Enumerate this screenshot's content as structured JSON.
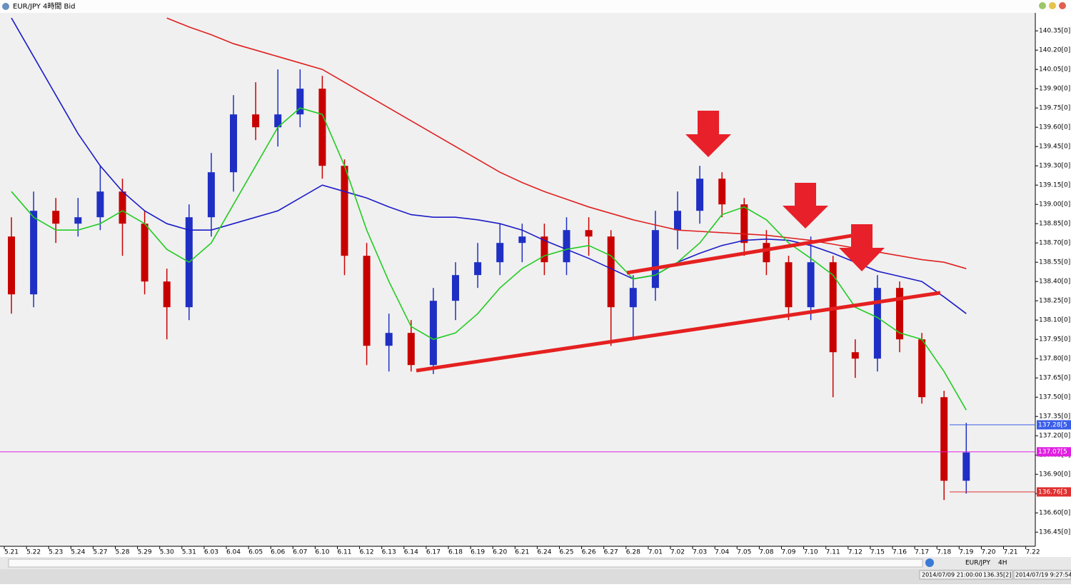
{
  "window": {
    "title": "EUR/JPY 4時間 Bid"
  },
  "chart_data": {
    "type": "candlestick",
    "categories": [
      "5.21",
      "5.22",
      "5.23",
      "5.24",
      "5.27",
      "5.28",
      "5.29",
      "5.30",
      "5.31",
      "6.03",
      "6.04",
      "6.05",
      "6.06",
      "6.07",
      "6.10",
      "6.11",
      "6.12",
      "6.13",
      "6.14",
      "6.17",
      "6.18",
      "6.19",
      "6.20",
      "6.21",
      "6.24",
      "6.25",
      "6.26",
      "6.27",
      "6.28",
      "7.01",
      "7.02",
      "7.03",
      "7.04",
      "7.05",
      "7.08",
      "7.09",
      "7.10",
      "7.11",
      "7.12",
      "7.15",
      "7.16",
      "7.17",
      "7.18",
      "7.19",
      "7.20",
      "7.21",
      "7.22"
    ],
    "open": [
      138.75,
      138.3,
      138.95,
      138.85,
      138.9,
      139.1,
      138.85,
      138.4,
      138.2,
      138.9,
      139.25,
      139.7,
      139.6,
      139.7,
      139.9,
      139.3,
      138.6,
      137.9,
      138.0,
      137.75,
      138.25,
      138.45,
      138.55,
      138.7,
      138.75,
      138.55,
      138.8,
      138.75,
      138.2,
      138.35,
      138.8,
      138.95,
      139.2,
      139.0,
      138.7,
      138.55,
      138.2,
      138.55,
      137.85,
      137.8,
      138.35,
      137.95,
      137.5,
      136.85,
      null,
      null,
      null
    ],
    "high": [
      138.9,
      139.1,
      139.05,
      139.05,
      139.3,
      139.2,
      138.95,
      138.5,
      139.0,
      139.4,
      139.85,
      139.95,
      140.05,
      140.05,
      140.0,
      139.35,
      138.7,
      138.15,
      138.1,
      138.35,
      138.55,
      138.7,
      138.85,
      138.85,
      138.85,
      138.9,
      138.9,
      138.8,
      138.45,
      138.95,
      139.1,
      139.3,
      139.25,
      139.05,
      138.8,
      138.6,
      138.75,
      138.6,
      137.95,
      138.45,
      138.4,
      138.0,
      137.55,
      137.3,
      null,
      null,
      null
    ],
    "low": [
      138.15,
      138.2,
      138.7,
      138.75,
      138.8,
      138.6,
      138.3,
      137.95,
      138.1,
      138.75,
      139.1,
      139.5,
      139.45,
      139.6,
      139.2,
      138.45,
      137.75,
      137.7,
      137.7,
      137.68,
      138.1,
      138.35,
      138.45,
      138.55,
      138.45,
      138.45,
      138.6,
      137.9,
      137.95,
      138.25,
      138.65,
      138.85,
      138.9,
      138.6,
      138.45,
      138.1,
      138.1,
      137.5,
      137.65,
      137.7,
      137.85,
      137.45,
      136.7,
      136.75,
      null,
      null,
      null
    ],
    "close": [
      138.3,
      138.95,
      138.85,
      138.9,
      139.1,
      138.85,
      138.4,
      138.2,
      138.9,
      139.25,
      139.7,
      139.6,
      139.7,
      139.9,
      139.3,
      138.6,
      137.9,
      138.0,
      137.75,
      138.25,
      138.45,
      138.55,
      138.7,
      138.75,
      138.55,
      138.8,
      138.75,
      138.2,
      138.35,
      138.8,
      138.95,
      139.2,
      139.0,
      138.7,
      138.55,
      138.2,
      138.55,
      137.85,
      137.8,
      138.35,
      137.95,
      137.5,
      136.85,
      137.07,
      null,
      null,
      null
    ],
    "up_color": "#1f2fc4",
    "down_color": "#c80000",
    "series": [
      {
        "color": "#e02020",
        "values": [
          null,
          null,
          null,
          null,
          null,
          null,
          null,
          140.45,
          140.38,
          140.32,
          140.25,
          140.2,
          140.15,
          140.1,
          140.05,
          139.95,
          139.85,
          139.75,
          139.65,
          139.55,
          139.45,
          139.35,
          139.25,
          139.17,
          139.1,
          139.04,
          138.98,
          138.93,
          138.88,
          138.84,
          138.8,
          138.79,
          138.78,
          138.77,
          138.76,
          138.74,
          138.72,
          138.69,
          138.66,
          138.63,
          138.6,
          138.57,
          138.55,
          138.5,
          null,
          null,
          null
        ]
      },
      {
        "color": "#1c1cc8",
        "values": [
          140.45,
          140.15,
          139.85,
          139.55,
          139.3,
          139.1,
          138.95,
          138.85,
          138.8,
          138.8,
          138.85,
          138.9,
          138.95,
          139.05,
          139.15,
          139.1,
          139.05,
          138.98,
          138.92,
          138.9,
          138.9,
          138.88,
          138.85,
          138.8,
          138.72,
          138.65,
          138.58,
          138.5,
          138.42,
          138.45,
          138.55,
          138.62,
          138.68,
          138.72,
          138.73,
          138.72,
          138.68,
          138.62,
          138.55,
          138.48,
          138.44,
          138.4,
          138.28,
          138.15,
          null,
          null,
          null
        ]
      },
      {
        "color": "#22cc22",
        "values": [
          139.1,
          138.9,
          138.8,
          138.8,
          138.85,
          138.95,
          138.85,
          138.65,
          138.55,
          138.7,
          139.0,
          139.3,
          139.6,
          139.75,
          139.7,
          139.3,
          138.8,
          138.4,
          138.05,
          137.95,
          138.0,
          138.15,
          138.35,
          138.5,
          138.6,
          138.65,
          138.68,
          138.6,
          138.42,
          138.45,
          138.55,
          138.7,
          138.92,
          138.98,
          138.88,
          138.7,
          138.58,
          138.45,
          138.2,
          138.12,
          138.0,
          137.95,
          137.7,
          137.4,
          null,
          null,
          null
        ]
      }
    ],
    "ylim": [
      136.34,
      140.49
    ],
    "yticks": [
      {
        "value": 140.35,
        "label": "140.35[0]"
      },
      {
        "value": 140.2,
        "label": "140.20[0]"
      },
      {
        "value": 140.05,
        "label": "140.05[0]"
      },
      {
        "value": 139.9,
        "label": "139.90[0]"
      },
      {
        "value": 139.75,
        "label": "139.75[0]"
      },
      {
        "value": 139.6,
        "label": "139.60[0]"
      },
      {
        "value": 139.45,
        "label": "139.45[0]"
      },
      {
        "value": 139.3,
        "label": "139.30[0]"
      },
      {
        "value": 139.15,
        "label": "139.15[0]"
      },
      {
        "value": 139.0,
        "label": "139.00[0]"
      },
      {
        "value": 138.85,
        "label": "138.85[0]"
      },
      {
        "value": 138.7,
        "label": "138.70[0]"
      },
      {
        "value": 138.55,
        "label": "138.55[0]"
      },
      {
        "value": 138.4,
        "label": "138.40[0]"
      },
      {
        "value": 138.25,
        "label": "138.25[0]"
      },
      {
        "value": 138.1,
        "label": "138.10[0]"
      },
      {
        "value": 137.95,
        "label": "137.95[0]"
      },
      {
        "value": 137.8,
        "label": "137.80[0]"
      },
      {
        "value": 137.65,
        "label": "137.65[0]"
      },
      {
        "value": 137.5,
        "label": "137.50[0]"
      },
      {
        "value": 137.35,
        "label": "137.35[0]"
      },
      {
        "value": 137.2,
        "label": "137.20[0]"
      },
      {
        "value": 137.05,
        "label": "137.05[0]"
      },
      {
        "value": 136.9,
        "label": "136.90[0]"
      },
      {
        "value": 136.75,
        "label": "136.75[0]"
      },
      {
        "value": 136.6,
        "label": "136.60[0]"
      },
      {
        "value": 136.45,
        "label": "136.45[0]"
      }
    ],
    "price_lines": [
      {
        "value": 137.285,
        "label": "137.28[5",
        "color": "#3a5ee8"
      },
      {
        "value": 137.075,
        "label": "137.07[5",
        "color": "#e020e0"
      },
      {
        "value": 136.763,
        "label": "136.76[3",
        "color": "#e03030"
      }
    ]
  },
  "toolbar": {
    "symbol": "EUR/JPY",
    "timeframe": "4H"
  },
  "status_bar": {
    "bar_time": "2014/07/09 21:00:00",
    "bar_price": "136.35[2]",
    "clock": "2014/07/19 9:27:54"
  }
}
